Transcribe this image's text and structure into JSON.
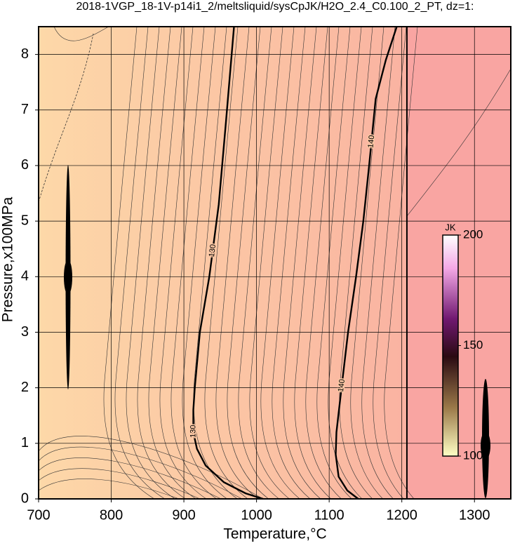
{
  "chart_data": {
    "type": "contour",
    "title": "2018-1VGP_18-1V-p14i1_2/meltsliquid/sysCpJK/H2O_2.4_C0.100_2_PT, dz=1:",
    "x_label": "Temperature,°C",
    "y_label": "Pressure,x100MPa",
    "xlim": [
      700,
      1350
    ],
    "ylim": [
      0,
      8.5
    ],
    "xticks": [
      700,
      800,
      900,
      1000,
      1100,
      1200,
      1300
    ],
    "yticks": [
      0,
      1,
      2,
      3,
      4,
      5,
      6,
      7,
      8
    ],
    "grid": true,
    "series": [
      {
        "name": "130",
        "color": "#000000",
        "x": [
          1009,
          985,
          955,
          930,
          918,
          913,
          913,
          915,
          922,
          935,
          948,
          958,
          969
        ],
        "y": [
          0,
          0.1,
          0.3,
          0.6,
          0.9,
          1.2,
          1.6,
          2,
          3,
          4,
          5.3,
          6.8,
          8.5
        ]
      },
      {
        "name": "140",
        "color": "#000000",
        "x": [
          1140,
          1125,
          1113,
          1109,
          1110,
          1117,
          1126,
          1137,
          1147,
          1155,
          1164,
          1178,
          1193
        ],
        "y": [
          0,
          0.15,
          0.4,
          0.8,
          1.2,
          2,
          3,
          4,
          5,
          6,
          7.2,
          7.9,
          8.5
        ]
      }
    ],
    "vlines": [
      1207
    ],
    "colorbar": {
      "label": "JK",
      "lim": [
        100,
        200
      ],
      "ticks": [
        100,
        150,
        200
      ]
    }
  }
}
